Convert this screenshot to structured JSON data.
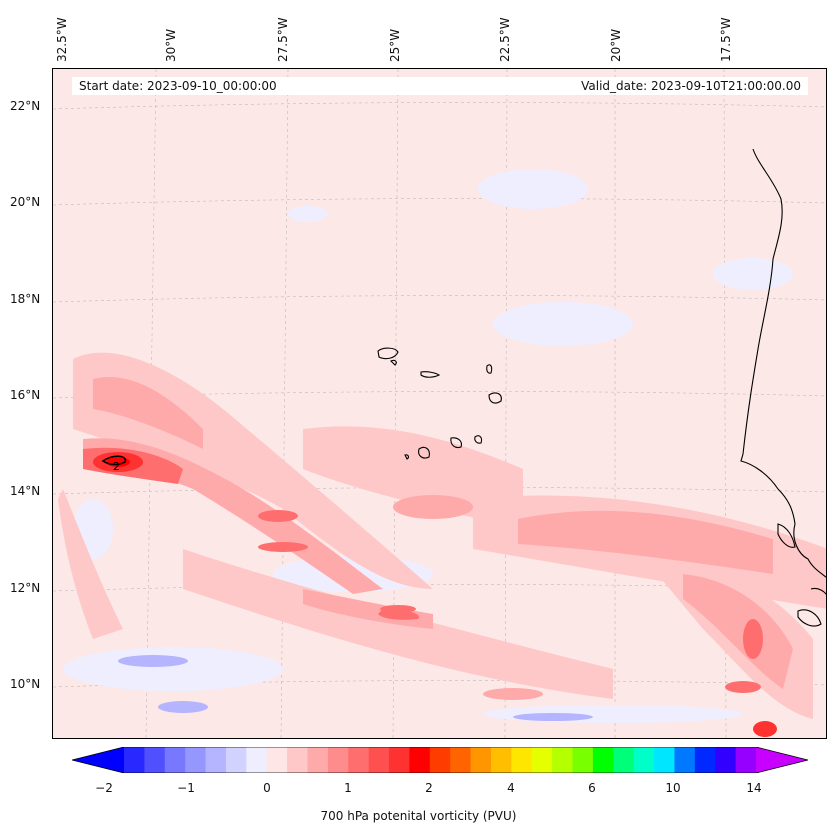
{
  "header": {
    "start_date": "Start date: 2023-09-10_00:00:00",
    "valid_date": "Valid_date: 2023-09-10T21:00:00.00"
  },
  "lon_labels": [
    "32.5°W",
    "30°W",
    "27.5°W",
    "25°W",
    "22.5°W",
    "20°W",
    "17.5°W"
  ],
  "lat_labels": [
    "22°N",
    "20°N",
    "18°N",
    "16°N",
    "14°N",
    "12°N",
    "10°N"
  ],
  "contour_label": "2",
  "colorbar": {
    "ticks": [
      "−2",
      "−1",
      "0",
      "1",
      "2",
      "4",
      "6",
      "10",
      "14"
    ],
    "title": "700 hPa potenital vorticity (PVU)",
    "colors": [
      "#0000ff",
      "#2828ff",
      "#5050ff",
      "#7878ff",
      "#9696ff",
      "#b4b4ff",
      "#d2d2ff",
      "#eeeeff",
      "#ffe6e6",
      "#ffc8c8",
      "#ffaaaa",
      "#ff8c8c",
      "#ff6e6e",
      "#ff5050",
      "#ff3232",
      "#ff0000",
      "#ff3c00",
      "#ff6400",
      "#ff9600",
      "#ffbe00",
      "#ffe600",
      "#e6ff00",
      "#b4ff00",
      "#78ff00",
      "#00ff00",
      "#00ff78",
      "#00ffc8",
      "#00e6ff",
      "#0078ff",
      "#0028ff",
      "#3200ff",
      "#9600ff",
      "#c800ff"
    ]
  }
}
